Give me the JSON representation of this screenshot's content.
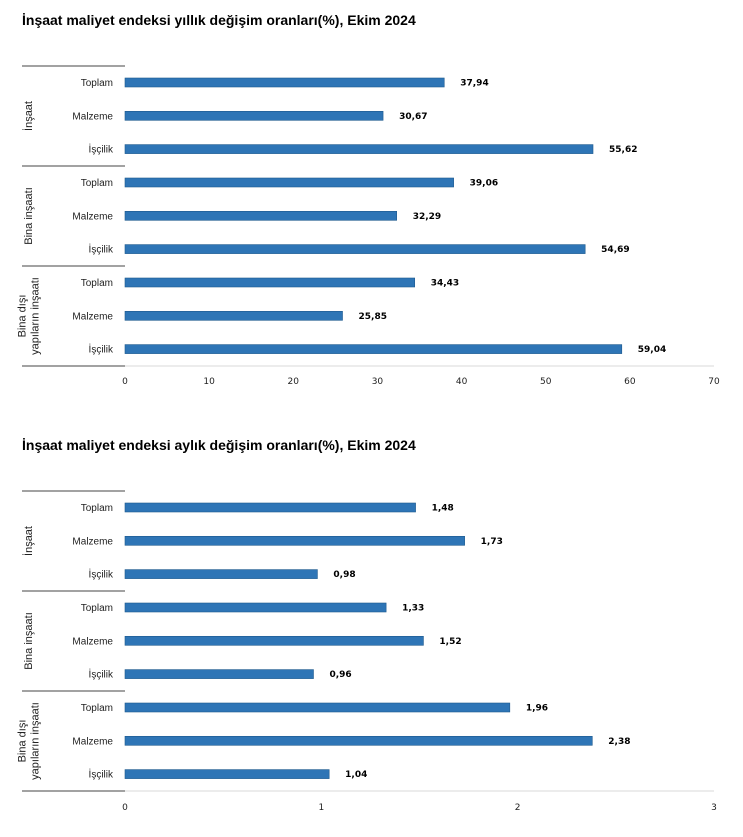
{
  "chart_data": [
    {
      "type": "bar",
      "orientation": "horizontal",
      "title": "İnşaat maliyet endeksi yıllık değişim oranları(%), Ekim 2024",
      "groups": [
        {
          "label": "İnşaat",
          "categories": [
            "Toplam",
            "Malzeme",
            "İşçilik"
          ],
          "values": [
            37.94,
            30.67,
            55.62
          ],
          "value_labels": [
            "37,94",
            "30,67",
            "55,62"
          ]
        },
        {
          "label": "Bina inşaatı",
          "categories": [
            "Toplam",
            "Malzeme",
            "İşçilik"
          ],
          "values": [
            39.06,
            32.29,
            54.69
          ],
          "value_labels": [
            "39,06",
            "32,29",
            "54,69"
          ]
        },
        {
          "label": "Bina dışı yapıların inşaatı",
          "label_lines": [
            "Bina dışı",
            "yapıların inşaatı"
          ],
          "categories": [
            "Toplam",
            "Malzeme",
            "İşçilik"
          ],
          "values": [
            34.43,
            25.85,
            59.04
          ],
          "value_labels": [
            "34,43",
            "25,85",
            "59,04"
          ]
        }
      ],
      "xlim": [
        0,
        70
      ],
      "xticks": [
        0,
        10,
        20,
        30,
        40,
        50,
        60,
        70
      ],
      "xtick_labels": [
        "0",
        "10",
        "20",
        "30",
        "40",
        "50",
        "60",
        "70"
      ],
      "bar_color": "#2e75b6",
      "grid": false,
      "legend": "none"
    },
    {
      "type": "bar",
      "orientation": "horizontal",
      "title": "İnşaat maliyet endeksi aylık değişim oranları(%), Ekim 2024",
      "groups": [
        {
          "label": "İnşaat",
          "categories": [
            "Toplam",
            "Malzeme",
            "İşçilik"
          ],
          "values": [
            1.48,
            1.73,
            0.98
          ],
          "value_labels": [
            "1,48",
            "1,73",
            "0,98"
          ]
        },
        {
          "label": "Bina inşaatı",
          "categories": [
            "Toplam",
            "Malzeme",
            "İşçilik"
          ],
          "values": [
            1.33,
            1.52,
            0.96
          ],
          "value_labels": [
            "1,33",
            "1,52",
            "0,96"
          ]
        },
        {
          "label": "Bina dışı yapıların inşaatı",
          "label_lines": [
            "Bina dışı",
            "yapıların inşaatı"
          ],
          "categories": [
            "Toplam",
            "Malzeme",
            "İşçilik"
          ],
          "values": [
            1.96,
            2.38,
            1.04
          ],
          "value_labels": [
            "1,96",
            "2,38",
            "1,04"
          ]
        }
      ],
      "xlim": [
        0,
        3
      ],
      "xticks": [
        0,
        1,
        2,
        3
      ],
      "xtick_labels": [
        "0",
        "1",
        "2",
        "3"
      ],
      "bar_color": "#2e75b6",
      "grid": false,
      "legend": "none"
    }
  ]
}
